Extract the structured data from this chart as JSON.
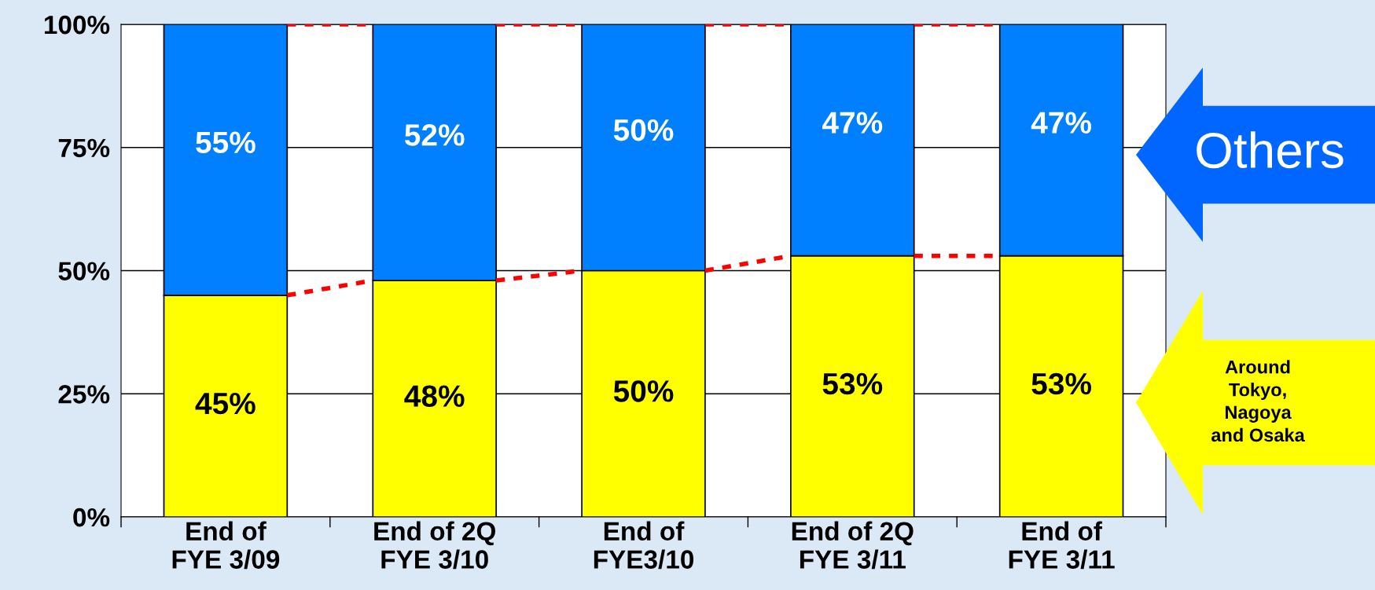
{
  "chart_data": {
    "type": "bar",
    "stacked": true,
    "categories": [
      "End of\nFYE 3/09",
      "End of 2Q\nFYE 3/10",
      "End of\nFYE3/10",
      "End of 2Q\nFYE 3/11",
      "End of\nFYE 3/11"
    ],
    "series": [
      {
        "name": "Around\nTokyo,\nNagoya\nand Osaka",
        "color": "#ffff00",
        "values": [
          45,
          48,
          50,
          53,
          53
        ],
        "value_labels": [
          "45%",
          "48%",
          "50%",
          "53%",
          "53%"
        ]
      },
      {
        "name": "Others",
        "color": "#0080ff",
        "values": [
          55,
          52,
          50,
          47,
          47
        ],
        "value_labels": [
          "55%",
          "52%",
          "50%",
          "47%",
          "47%"
        ]
      }
    ],
    "ylim": [
      0,
      100
    ],
    "yticks": [
      {
        "value": 0,
        "label": "0%"
      },
      {
        "value": 25,
        "label": "25%"
      },
      {
        "value": 50,
        "label": "50%"
      },
      {
        "value": 75,
        "label": "75%"
      },
      {
        "value": 100,
        "label": "100%"
      }
    ],
    "grid": "y",
    "line_style": "dashed"
  }
}
